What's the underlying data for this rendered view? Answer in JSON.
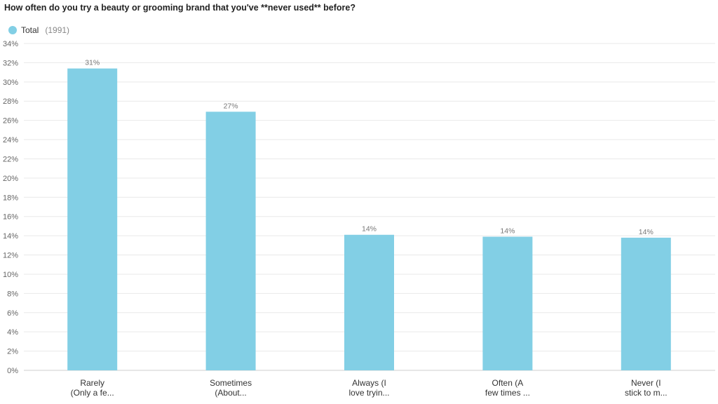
{
  "chart_data": {
    "type": "bar",
    "title": "How often do you try a beauty or grooming brand that you've **never used** before?",
    "legend": {
      "name": "Total",
      "count": "(1991)",
      "placement": "top-left"
    },
    "colors": {
      "bar": "#82CFE5",
      "grid": "#e9e9e9"
    },
    "categories": [
      [
        "Rarely",
        "(Only a fe..."
      ],
      [
        "Sometimes",
        "(About..."
      ],
      [
        "Always (I",
        "love tryin..."
      ],
      [
        "Often (A",
        "few times ..."
      ],
      [
        "Never (I",
        "stick to m..."
      ]
    ],
    "values": [
      31.4,
      26.9,
      14.1,
      13.9,
      13.8
    ],
    "value_labels": [
      "31%",
      "27%",
      "14%",
      "14%",
      "14%"
    ],
    "y_ticks": [
      "0%",
      "2%",
      "4%",
      "6%",
      "8%",
      "10%",
      "12%",
      "14%",
      "16%",
      "18%",
      "20%",
      "22%",
      "24%",
      "26%",
      "28%",
      "30%",
      "32%",
      "34%"
    ],
    "ylim": [
      0,
      34
    ],
    "grid": true
  }
}
